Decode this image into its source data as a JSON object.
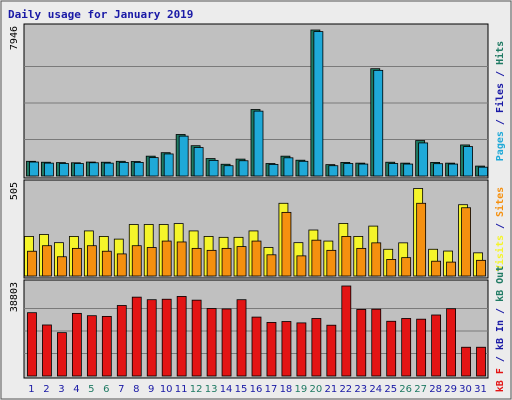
{
  "chart_data": {
    "type": "bar",
    "title": "Daily usage for January 2019",
    "days": [
      "1",
      "2",
      "3",
      "4",
      "5",
      "6",
      "7",
      "8",
      "9",
      "10",
      "11",
      "12",
      "13",
      "14",
      "15",
      "16",
      "17",
      "18",
      "19",
      "20",
      "21",
      "22",
      "23",
      "24",
      "25",
      "26",
      "27",
      "28",
      "29",
      "30",
      "31"
    ],
    "weekend_days": [
      "5",
      "6",
      "12",
      "13",
      "19",
      "20",
      "26",
      "27"
    ],
    "colors": {
      "hits": "#1f7a63",
      "files": "#1fa9d8",
      "pages": "#1fa9d8",
      "visits": "#f5f52a",
      "sites": "#f5900f",
      "kb_in": "#1a1aa6",
      "kb_out": "#1f7a63",
      "kb_f": "#e31414",
      "plot_bg": "#c0c0c0",
      "weekday_tick": "#1a1aa6",
      "weekend_tick": "#1f7a63"
    },
    "panels": [
      {
        "name": "Hits / Files / Pages",
        "ymax": 7946,
        "ymax_label": "7946",
        "grid": true,
        "labels": [
          {
            "text": "Pages",
            "color": "#1fa9d8"
          },
          {
            "text": " / ",
            "color": "#1a1aa6"
          },
          {
            "text": "Files",
            "color": "#1a1aa6"
          },
          {
            "text": " / ",
            "color": "#1a1aa6"
          },
          {
            "text": "Hits",
            "color": "#1f7a63"
          }
        ],
        "series": [
          {
            "name": "Hits",
            "color": "#1f7a63",
            "values": [
              800,
              750,
              730,
              720,
              760,
              750,
              800,
              790,
              1080,
              1270,
              2260,
              1650,
              950,
              640,
              920,
              3620,
              680,
              1080,
              860,
              7946,
              620,
              740,
              700,
              5840,
              750,
              700,
              1930,
              740,
              700,
              1690,
              540
            ]
          },
          {
            "name": "Files",
            "color": "#1fa9d8",
            "values": [
              760,
              700,
              680,
              680,
              720,
              700,
              740,
              740,
              1000,
              1200,
              2170,
              1550,
              850,
              560,
              830,
              3530,
              630,
              990,
              800,
              7860,
              560,
              680,
              650,
              5750,
              680,
              650,
              1800,
              670,
              650,
              1600,
              480
            ]
          }
        ]
      },
      {
        "name": "Visits / Sites",
        "ymax": 505,
        "ymax_label": "505",
        "grid": false,
        "labels": [
          {
            "text": "Visits",
            "color": "#f5f52a"
          },
          {
            "text": " / ",
            "color": "#1a1aa6"
          },
          {
            "text": "Sites",
            "color": "#f5900f"
          }
        ],
        "series": [
          {
            "name": "Visits",
            "color": "#f5f52a",
            "values": [
              222,
              233,
              187,
              222,
              253,
              222,
              207,
              289,
              289,
              289,
              294,
              253,
              222,
              217,
              217,
              253,
              160,
              408,
              187,
              258,
              196,
              295,
              222,
              280,
              150,
              186,
              491,
              150,
              140,
              400,
              130
            ]
          },
          {
            "name": "Sites",
            "color": "#f5900f",
            "values": [
              139,
              170,
              108,
              155,
              170,
              139,
              124,
              170,
              160,
              196,
              191,
              155,
              144,
              155,
              165,
              196,
              119,
              357,
              113,
              201,
              144,
              222,
              155,
              186,
              93,
              103,
              408,
              83,
              78,
              383,
              88
            ]
          }
        ]
      },
      {
        "name": "kB F / kB In / kB Out",
        "ymax": 38803,
        "ymax_label": "38803",
        "grid": true,
        "labels": [
          {
            "text": "kB F",
            "color": "#e31414"
          },
          {
            "text": " / ",
            "color": "#1a1aa6"
          },
          {
            "text": "kB In",
            "color": "#1a1aa6"
          },
          {
            "text": " / ",
            "color": "#1a1aa6"
          },
          {
            "text": "kB Out",
            "color": "#1f7a63"
          }
        ],
        "series": [
          {
            "name": "kB F",
            "color": "#e31414",
            "values": [
              27300,
              22000,
              18700,
              27000,
              26000,
              25700,
              30400,
              34000,
              32900,
              33100,
              34300,
              32700,
              29100,
              28900,
              32900,
              25400,
              23100,
              23500,
              22900,
              24800,
              21900,
              38803,
              28700,
              28800,
              23600,
              24800,
              24500,
              26300,
              29000,
              12400,
              12400
            ]
          }
        ]
      }
    ]
  }
}
